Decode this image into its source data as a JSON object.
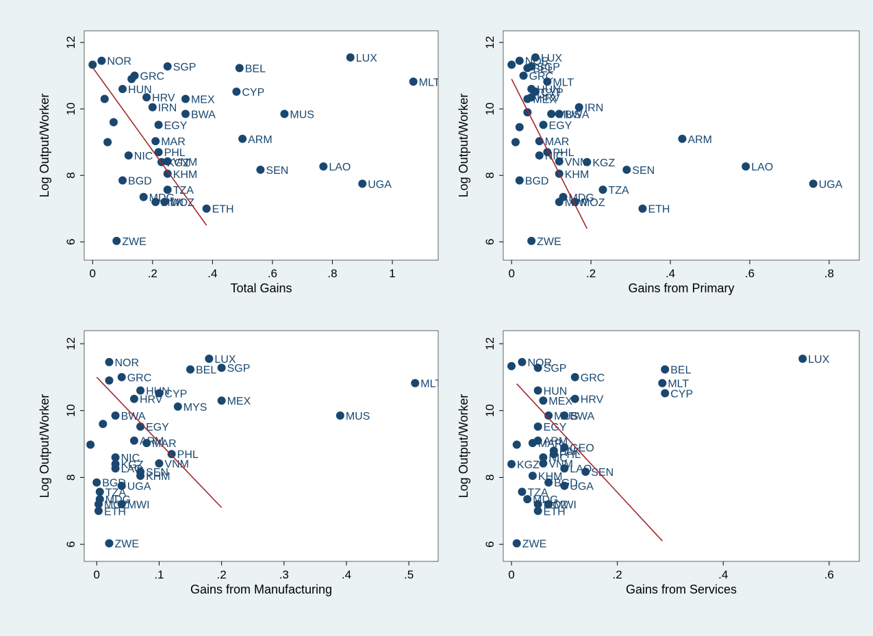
{
  "chart_data": [
    {
      "type": "scatter",
      "x_label": "Total Gains",
      "y_label": "Log Output/Worker",
      "xlim": [
        -0.028,
        1.153
      ],
      "ylim": [
        5.45,
        12.35
      ],
      "xticks": [
        0,
        {
          "value": 0.2,
          "label": ".2"
        },
        {
          "value": 0.4,
          "label": ".4"
        },
        {
          "value": 0.6,
          "label": ".6"
        },
        {
          "value": 0.8,
          "label": ".8"
        },
        1
      ],
      "yticks": [
        6,
        8,
        10,
        12
      ],
      "color": "#1a476f",
      "fit_color": "#a0282c",
      "labels": [
        "NOR",
        "LUX",
        "SGP",
        "BEL",
        "MLT",
        "CYP",
        "MEX",
        "HRV",
        "BWA",
        "MUS",
        "EGY",
        "ARM",
        "MAR",
        "PHL",
        "VNM",
        "KGZ",
        "SEN",
        "LAO",
        "KHM",
        "BGD",
        "UGA",
        "TZA",
        "MDG",
        "MOZ",
        "MWI",
        "ETH",
        "ZWE",
        "GRC",
        "HUN",
        "NIC",
        "IRN",
        null,
        null,
        null,
        null,
        null
      ],
      "x": [
        0.03,
        0.86,
        0.25,
        0.49,
        1.07,
        0.48,
        0.31,
        0.18,
        0.31,
        0.64,
        0.22,
        0.5,
        0.21,
        0.22,
        0.25,
        0.23,
        0.56,
        0.77,
        0.25,
        0.1,
        0.9,
        0.25,
        0.17,
        0.24,
        0.21,
        0.38,
        0.08,
        0.14,
        0.1,
        0.12,
        0.2,
        0,
        0.04,
        0.07,
        0.05,
        0.13
      ],
      "y": [
        11.45,
        11.55,
        11.28,
        11.23,
        10.82,
        10.52,
        10.3,
        10.35,
        9.85,
        9.85,
        9.52,
        9.1,
        9.03,
        8.7,
        8.42,
        8.4,
        8.17,
        8.27,
        8.05,
        7.85,
        7.75,
        7.57,
        7.35,
        7.2,
        7.2,
        7.0,
        6.03,
        11.0,
        10.6,
        8.6,
        10.05,
        11.33,
        10.3,
        9.6,
        9.0,
        10.9
      ],
      "fit": {
        "x": [
          0,
          0.38
        ],
        "y": [
          11.25,
          6.5
        ]
      }
    },
    {
      "type": "scatter",
      "x_label": "Gains from Primary",
      "y_label": "Log Output/Worker",
      "xlim": [
        -0.021,
        0.876
      ],
      "ylim": [
        5.45,
        12.35
      ],
      "xticks": [
        0,
        {
          "value": 0.2,
          "label": ".2"
        },
        {
          "value": 0.4,
          "label": ".4"
        },
        {
          "value": 0.6,
          "label": ".6"
        },
        {
          "value": 0.8,
          "label": ".8"
        }
      ],
      "yticks": [
        6,
        8,
        10,
        12
      ],
      "color": "#1a476f",
      "fit_color": "#a0282c",
      "labels": [
        "NOR",
        "LUX",
        "SGP",
        "BEL",
        "MLT",
        "CYP",
        "MEX",
        "HRV",
        "BWA",
        "MUS",
        "EGY",
        "ARM",
        "MAR",
        "PHL",
        "VNM",
        "KGZ",
        "SEN",
        "LAO",
        "KHM",
        "BGD",
        "UGA",
        "TZA",
        "MDG",
        "MOZ",
        "MWI",
        "ETH",
        "ZWE",
        "GRC",
        "HUN",
        "NIC",
        "IRN",
        null,
        null,
        null,
        null
      ],
      "x": [
        0.02,
        0.06,
        0.05,
        0.04,
        0.09,
        0.06,
        0.04,
        0.05,
        0.12,
        0.1,
        0.08,
        0.43,
        0.07,
        0.09,
        0.12,
        0.19,
        0.29,
        0.59,
        0.12,
        0.02,
        0.76,
        0.23,
        0.13,
        0.16,
        0.12,
        0.33,
        0.05,
        0.03,
        0.05,
        0.07,
        0.17,
        0,
        0.02,
        0.01,
        0.04
      ],
      "y": [
        11.45,
        11.55,
        11.28,
        11.23,
        10.82,
        10.52,
        10.3,
        10.35,
        9.85,
        9.85,
        9.52,
        9.1,
        9.03,
        8.7,
        8.42,
        8.4,
        8.17,
        8.27,
        8.05,
        7.85,
        7.75,
        7.57,
        7.35,
        7.2,
        7.2,
        7.0,
        6.03,
        11.0,
        10.6,
        8.6,
        10.05,
        11.33,
        9.45,
        9.0,
        9.9
      ],
      "fit": {
        "x": [
          0,
          0.19
        ],
        "y": [
          10.9,
          6.4
        ]
      }
    },
    {
      "type": "scatter",
      "x_label": "Gains from Manufacturing",
      "y_label": "Log Output/Worker",
      "xlim": [
        -0.02,
        0.547
      ],
      "ylim": [
        5.49,
        12.39
      ],
      "xticks": [
        0,
        {
          "value": 0.1,
          "label": ".1"
        },
        {
          "value": 0.2,
          "label": ".2"
        },
        {
          "value": 0.3,
          "label": ".3"
        },
        {
          "value": 0.4,
          "label": ".4"
        },
        {
          "value": 0.5,
          "label": ".5"
        }
      ],
      "yticks": [
        6,
        8,
        10,
        12
      ],
      "color": "#1a476f",
      "fit_color": "#a0282c",
      "labels": [
        "NOR",
        "LUX",
        "SGP",
        "BEL",
        "MLT",
        "CYP",
        "MEX",
        "HRV",
        "BWA",
        "MUS",
        "EGY",
        "ARM",
        "MAR",
        "PHL",
        "VNM",
        "KGZ",
        "SEN",
        "LAO",
        "KHM",
        "BGD",
        "UGA",
        "TZA",
        "MDG",
        "MOZ",
        "MWI",
        "ETH",
        "ZWE",
        "MYS",
        "GRC",
        "HUN",
        "NIC",
        null,
        null,
        null
      ],
      "x": [
        0.02,
        0.18,
        0.2,
        0.15,
        0.51,
        0.1,
        0.2,
        0.06,
        0.03,
        0.39,
        0.07,
        0.06,
        0.08,
        0.12,
        0.1,
        0.03,
        0.07,
        0.03,
        0.07,
        0,
        0.04,
        0.005,
        0.005,
        0.003,
        0.04,
        0.003,
        0.02,
        0.13,
        0.04,
        0.07,
        0.03,
        -0.01,
        0.01,
        0.02
      ],
      "y": [
        11.45,
        11.55,
        11.28,
        11.23,
        10.82,
        10.52,
        10.3,
        10.35,
        9.85,
        9.85,
        9.52,
        9.1,
        9.03,
        8.7,
        8.42,
        8.4,
        8.17,
        8.27,
        8.05,
        7.85,
        7.75,
        7.57,
        7.35,
        7.2,
        7.2,
        7.0,
        6.03,
        10.12,
        11.0,
        10.6,
        8.6,
        8.98,
        9.6,
        10.9
      ],
      "fit": {
        "x": [
          0,
          0.2
        ],
        "y": [
          11.0,
          7.1
        ]
      }
    },
    {
      "type": "scatter",
      "x_label": "Gains from Services",
      "y_label": "Log Output/Worker",
      "xlim": [
        -0.0155,
        0.657
      ],
      "ylim": [
        5.49,
        12.39
      ],
      "xticks": [
        0,
        {
          "value": 0.2,
          "label": ".2"
        },
        {
          "value": 0.4,
          "label": ".4"
        },
        {
          "value": 0.6,
          "label": ".6"
        }
      ],
      "yticks": [
        6,
        8,
        10,
        12
      ],
      "color": "#1a476f",
      "fit_color": "#a0282c",
      "labels": [
        "NOR",
        "LUX",
        "SGP",
        "BEL",
        "MLT",
        "CYP",
        "MEX",
        "HRV",
        "BWA",
        "MUS",
        "EGY",
        "ARM",
        "MAR",
        "PHL",
        "VNM",
        "KGZ",
        "SEN",
        "LAO",
        "KHM",
        "BGD",
        "UGA",
        "TZA",
        "MDG",
        "MOZ",
        "MWI",
        "ETH",
        "ZWE",
        "GRC",
        "HUN",
        "NIC",
        "GEO",
        "PAK",
        null,
        null
      ],
      "x": [
        0.02,
        0.55,
        0.05,
        0.29,
        0.285,
        0.29,
        0.06,
        0.12,
        0.1,
        0.07,
        0.05,
        0.05,
        0.04,
        0.08,
        0.06,
        0,
        0.14,
        0.1,
        0.04,
        0.07,
        0.1,
        0.02,
        0.03,
        0.05,
        0.07,
        0.05,
        0.01,
        0.12,
        0.05,
        0.06,
        0.1,
        0.08,
        0,
        0.01
      ],
      "y": [
        11.45,
        11.55,
        11.28,
        11.23,
        10.82,
        10.52,
        10.3,
        10.35,
        9.85,
        9.85,
        9.52,
        9.1,
        9.03,
        8.7,
        8.42,
        8.4,
        8.17,
        8.27,
        8.05,
        7.85,
        7.75,
        7.57,
        7.35,
        7.2,
        7.2,
        7.0,
        6.03,
        11.0,
        10.6,
        8.6,
        8.9,
        8.8,
        11.33,
        8.98
      ],
      "fit": {
        "x": [
          0.01,
          0.285
        ],
        "y": [
          10.8,
          6.1
        ]
      }
    }
  ]
}
